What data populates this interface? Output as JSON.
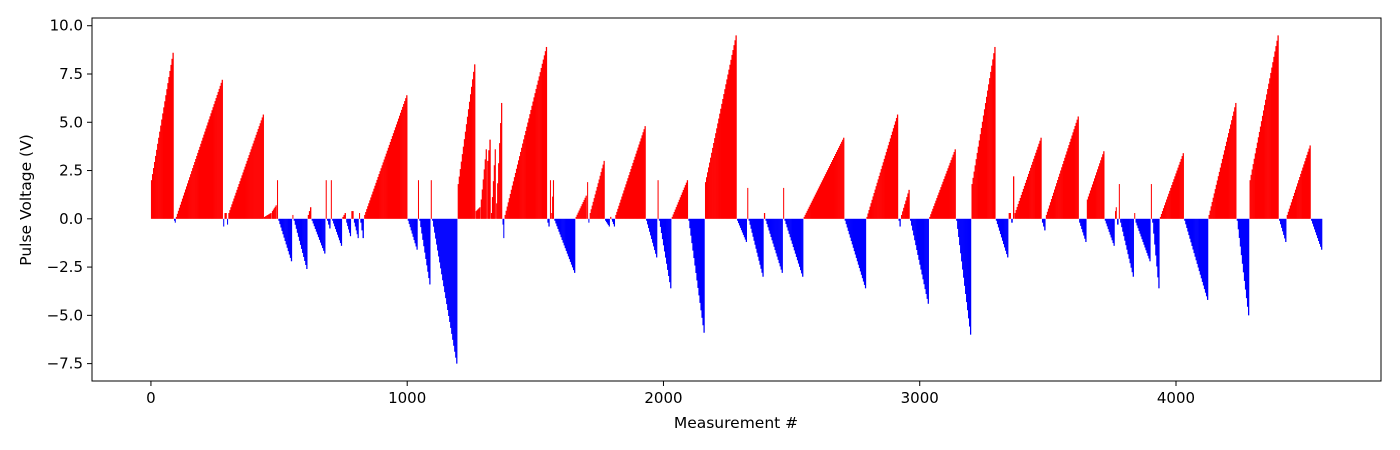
{
  "chart_data": {
    "type": "bar",
    "title": "",
    "xlabel": "Measurement #",
    "ylabel": "Pulse Voltage (V)",
    "xlim": [
      -230,
      4800
    ],
    "ylim": [
      -8.4,
      10.4
    ],
    "x_ticks": [
      0,
      1000,
      2000,
      3000,
      4000
    ],
    "x_tick_labels": [
      "0",
      "1000",
      "2000",
      "3000",
      "4000"
    ],
    "y_ticks": [
      -7.5,
      -5.0,
      -2.5,
      0.0,
      2.5,
      5.0,
      7.5,
      10.0
    ],
    "y_tick_labels": [
      "−7.5",
      "−5.0",
      "−2.5",
      "0.0",
      "2.5",
      "5.0",
      "7.5",
      "10.0"
    ],
    "grid": false,
    "legend": "none",
    "colors": {
      "positive": "#ff0000",
      "negative": "#0000ff"
    },
    "segments": [
      {
        "x0": 0,
        "x1": 88,
        "v0": 2.0,
        "v1": 8.6
      },
      {
        "x0": 90,
        "x1": 96,
        "v0": -0.1,
        "v1": -0.2
      },
      {
        "x0": 97,
        "x1": 280,
        "v0": 0.1,
        "v1": 7.2
      },
      {
        "x0": 282,
        "x1": 285,
        "v0": -0.4,
        "v1": -0.4
      },
      {
        "x0": 287,
        "x1": 295,
        "v0": 0.3,
        "v1": 0.3
      },
      {
        "x0": 297,
        "x1": 300,
        "v0": -0.3,
        "v1": -0.3
      },
      {
        "x0": 302,
        "x1": 440,
        "v0": 0.3,
        "v1": 5.4
      },
      {
        "x0": 441,
        "x1": 470,
        "v0": 0.1,
        "v1": 0.3
      },
      {
        "x0": 472,
        "x1": 490,
        "v0": 0.4,
        "v1": 0.7
      },
      {
        "x0": 492,
        "x1": 495,
        "v0": 2.0,
        "v1": 2.0
      },
      {
        "x0": 497,
        "x1": 550,
        "v0": -0.1,
        "v1": -2.2
      },
      {
        "x0": 552,
        "x1": 555,
        "v0": 0.2,
        "v1": 0.2
      },
      {
        "x0": 557,
        "x1": 610,
        "v0": -0.1,
        "v1": -2.6
      },
      {
        "x0": 612,
        "x1": 625,
        "v0": 0.2,
        "v1": 0.6
      },
      {
        "x0": 627,
        "x1": 680,
        "v0": -0.1,
        "v1": -1.8
      },
      {
        "x0": 682,
        "x1": 685,
        "v0": 2.0,
        "v1": 2.0
      },
      {
        "x0": 687,
        "x1": 700,
        "v0": -0.1,
        "v1": -0.5
      },
      {
        "x0": 702,
        "x1": 705,
        "v0": 2.0,
        "v1": 2.0
      },
      {
        "x0": 707,
        "x1": 745,
        "v0": -0.1,
        "v1": -1.4
      },
      {
        "x0": 747,
        "x1": 760,
        "v0": 0.1,
        "v1": 0.3
      },
      {
        "x0": 762,
        "x1": 780,
        "v0": -0.2,
        "v1": -0.9
      },
      {
        "x0": 782,
        "x1": 790,
        "v0": 0.4,
        "v1": 0.4
      },
      {
        "x0": 792,
        "x1": 810,
        "v0": -0.2,
        "v1": -1.0
      },
      {
        "x0": 812,
        "x1": 815,
        "v0": 0.3,
        "v1": 0.3
      },
      {
        "x0": 817,
        "x1": 830,
        "v0": -0.2,
        "v1": -1.0
      },
      {
        "x0": 832,
        "x1": 1000,
        "v0": 0.2,
        "v1": 6.4
      },
      {
        "x0": 1002,
        "x1": 1040,
        "v0": -0.1,
        "v1": -1.6
      },
      {
        "x0": 1042,
        "x1": 1045,
        "v0": 2.0,
        "v1": 2.0
      },
      {
        "x0": 1047,
        "x1": 1090,
        "v0": -0.1,
        "v1": -3.4
      },
      {
        "x0": 1092,
        "x1": 1095,
        "v0": 2.0,
        "v1": 2.0
      },
      {
        "x0": 1097,
        "x1": 1195,
        "v0": -0.1,
        "v1": -7.5
      },
      {
        "x0": 1197,
        "x1": 1265,
        "v0": 1.8,
        "v1": 8.0
      },
      {
        "x0": 1267,
        "x1": 1285,
        "v0": 0.4,
        "v1": 0.6
      },
      {
        "x0": 1287,
        "x1": 1310,
        "v0": 1.0,
        "v1": 3.6
      },
      {
        "x0": 1312,
        "x1": 1325,
        "v0": 3.0,
        "v1": 4.1
      },
      {
        "x0": 1327,
        "x1": 1345,
        "v0": 0.3,
        "v1": 3.6
      },
      {
        "x0": 1347,
        "x1": 1370,
        "v0": 0.8,
        "v1": 6.0
      },
      {
        "x0": 1372,
        "x1": 1378,
        "v0": -0.3,
        "v1": -1.0
      },
      {
        "x0": 1380,
        "x1": 1545,
        "v0": 0.2,
        "v1": 8.9
      },
      {
        "x0": 1547,
        "x1": 1555,
        "v0": -0.2,
        "v1": -0.4
      },
      {
        "x0": 1557,
        "x1": 1560,
        "v0": 2.0,
        "v1": 2.0
      },
      {
        "x0": 1562,
        "x1": 1572,
        "v0": 0.3,
        "v1": 2.0
      },
      {
        "x0": 1574,
        "x1": 1655,
        "v0": -0.1,
        "v1": -2.8
      },
      {
        "x0": 1657,
        "x1": 1700,
        "v0": 0.1,
        "v1": 1.2
      },
      {
        "x0": 1702,
        "x1": 1705,
        "v0": 1.9,
        "v1": 1.9
      },
      {
        "x0": 1707,
        "x1": 1710,
        "v0": -0.2,
        "v1": -0.2
      },
      {
        "x0": 1712,
        "x1": 1770,
        "v0": 0.3,
        "v1": 3.0
      },
      {
        "x0": 1772,
        "x1": 1790,
        "v0": -0.1,
        "v1": -0.4
      },
      {
        "x0": 1792,
        "x1": 1810,
        "v0": 0.1,
        "v1": -0.4
      },
      {
        "x0": 1812,
        "x1": 1930,
        "v0": 0.2,
        "v1": 4.8
      },
      {
        "x0": 1932,
        "x1": 1975,
        "v0": -0.1,
        "v1": -2.0
      },
      {
        "x0": 1977,
        "x1": 1980,
        "v0": 2.0,
        "v1": 2.0
      },
      {
        "x0": 1982,
        "x1": 2030,
        "v0": -0.1,
        "v1": -3.6
      },
      {
        "x0": 2032,
        "x1": 2095,
        "v0": 0.1,
        "v1": 2.0
      },
      {
        "x0": 2097,
        "x1": 2160,
        "v0": -0.1,
        "v1": -5.9
      },
      {
        "x0": 2162,
        "x1": 2285,
        "v0": 1.9,
        "v1": 9.5
      },
      {
        "x0": 2287,
        "x1": 2325,
        "v0": -0.1,
        "v1": -1.2
      },
      {
        "x0": 2327,
        "x1": 2330,
        "v0": 1.6,
        "v1": 1.6
      },
      {
        "x0": 2332,
        "x1": 2390,
        "v0": -0.1,
        "v1": -3.0
      },
      {
        "x0": 2392,
        "x1": 2396,
        "v0": 0.3,
        "v1": 0.3
      },
      {
        "x0": 2398,
        "x1": 2465,
        "v0": -0.1,
        "v1": -2.8
      },
      {
        "x0": 2467,
        "x1": 2470,
        "v0": 1.6,
        "v1": 1.6
      },
      {
        "x0": 2472,
        "x1": 2545,
        "v0": -0.1,
        "v1": -3.0
      },
      {
        "x0": 2547,
        "x1": 2705,
        "v0": 0.1,
        "v1": 4.2
      },
      {
        "x0": 2707,
        "x1": 2790,
        "v0": -0.1,
        "v1": -3.6
      },
      {
        "x0": 2792,
        "x1": 2915,
        "v0": 0.1,
        "v1": 5.4
      },
      {
        "x0": 2917,
        "x1": 2925,
        "v0": -0.1,
        "v1": -0.4
      },
      {
        "x0": 2927,
        "x1": 2960,
        "v0": 0.2,
        "v1": 1.5
      },
      {
        "x0": 2962,
        "x1": 3035,
        "v0": -0.1,
        "v1": -4.4
      },
      {
        "x0": 3037,
        "x1": 3140,
        "v0": 0.1,
        "v1": 3.6
      },
      {
        "x0": 3142,
        "x1": 3200,
        "v0": -0.1,
        "v1": -6.0
      },
      {
        "x0": 3202,
        "x1": 3295,
        "v0": 1.8,
        "v1": 8.9
      },
      {
        "x0": 3297,
        "x1": 3345,
        "v0": -0.1,
        "v1": -2.0
      },
      {
        "x0": 3347,
        "x1": 3355,
        "v0": 0.3,
        "v1": 0.3
      },
      {
        "x0": 3357,
        "x1": 3362,
        "v0": -0.2,
        "v1": -0.2
      },
      {
        "x0": 3364,
        "x1": 3368,
        "v0": 2.2,
        "v1": 2.2
      },
      {
        "x0": 3370,
        "x1": 3475,
        "v0": 0.3,
        "v1": 4.2
      },
      {
        "x0": 3477,
        "x1": 3490,
        "v0": -0.2,
        "v1": -0.6
      },
      {
        "x0": 3492,
        "x1": 3620,
        "v0": 0.2,
        "v1": 5.3
      },
      {
        "x0": 3622,
        "x1": 3650,
        "v0": -0.2,
        "v1": -1.2
      },
      {
        "x0": 3652,
        "x1": 3720,
        "v0": 1.0,
        "v1": 3.5
      },
      {
        "x0": 3722,
        "x1": 3760,
        "v0": -0.1,
        "v1": -1.4
      },
      {
        "x0": 3762,
        "x1": 3768,
        "v0": 0.4,
        "v1": 0.6
      },
      {
        "x0": 3770,
        "x1": 3775,
        "v0": -0.2,
        "v1": -0.3
      },
      {
        "x0": 3777,
        "x1": 3780,
        "v0": 1.8,
        "v1": 1.8
      },
      {
        "x0": 3782,
        "x1": 3835,
        "v0": -0.2,
        "v1": -3.0
      },
      {
        "x0": 3837,
        "x1": 3840,
        "v0": 0.3,
        "v1": 0.3
      },
      {
        "x0": 3842,
        "x1": 3900,
        "v0": -0.2,
        "v1": -2.2
      },
      {
        "x0": 3902,
        "x1": 3905,
        "v0": 1.8,
        "v1": 1.8
      },
      {
        "x0": 3907,
        "x1": 3935,
        "v0": -0.2,
        "v1": -3.6
      },
      {
        "x0": 3937,
        "x1": 4030,
        "v0": 0.1,
        "v1": 3.4
      },
      {
        "x0": 4032,
        "x1": 4125,
        "v0": -0.1,
        "v1": -4.2
      },
      {
        "x0": 4127,
        "x1": 4235,
        "v0": 0.2,
        "v1": 6.0
      },
      {
        "x0": 4237,
        "x1": 4285,
        "v0": -0.1,
        "v1": -5.0
      },
      {
        "x0": 4287,
        "x1": 4400,
        "v0": 2.0,
        "v1": 9.5
      },
      {
        "x0": 4402,
        "x1": 4430,
        "v0": -0.1,
        "v1": -1.2
      },
      {
        "x0": 4432,
        "x1": 4525,
        "v0": 0.2,
        "v1": 3.8
      },
      {
        "x0": 4527,
        "x1": 4570,
        "v0": -0.1,
        "v1": -1.6
      }
    ]
  }
}
